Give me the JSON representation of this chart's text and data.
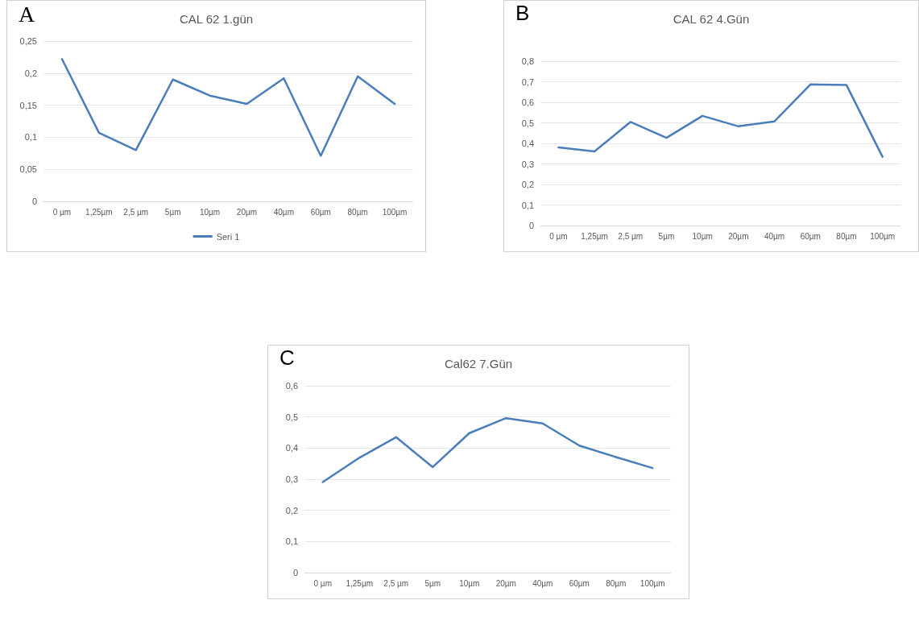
{
  "chart_data": [
    {
      "type": "line",
      "title": "CAL 62 1.gün",
      "annotations": [
        "A"
      ],
      "categories": [
        "0 µm",
        "1,25µm",
        "2,5 µm",
        "5µm",
        "10µm",
        "20µm",
        "40µm",
        "60µm",
        "80µm",
        "100µm"
      ],
      "series": [
        {
          "name": "Seri 1",
          "color": "#4a7ebb",
          "values": [
            0.222,
            0.107,
            0.08,
            0.19,
            0.165,
            0.152,
            0.192,
            0.071,
            0.195,
            0.152
          ]
        }
      ],
      "ylim": [
        0,
        0.25
      ],
      "yticks": [
        {
          "value": 0,
          "label": "0"
        },
        {
          "value": 0.05,
          "label": "0,05"
        },
        {
          "value": 0.1,
          "label": "0,1"
        },
        {
          "value": 0.15,
          "label": "0,15"
        },
        {
          "value": 0.2,
          "label": "0,2"
        },
        {
          "value": 0.25,
          "label": "0,25"
        }
      ],
      "grid": "y",
      "legend": "bottom",
      "marker": "none",
      "line_style": "solid"
    },
    {
      "type": "line",
      "title": "CAL 62 4.Gün",
      "annotations": [
        "B"
      ],
      "categories": [
        "0 µm",
        "1,25µm",
        "2,5 µm",
        "5µm",
        "10µm",
        "20µm",
        "40µm",
        "60µm",
        "80µm",
        "100µm"
      ],
      "series": [
        {
          "color": "#4a7ebb",
          "values": [
            0.38,
            0.361,
            0.504,
            0.427,
            0.534,
            0.483,
            0.507,
            0.687,
            0.684,
            0.335
          ]
        }
      ],
      "ylim": [
        0,
        0.8
      ],
      "yticks": [
        {
          "value": 0,
          "label": "0"
        },
        {
          "value": 0.1,
          "label": "0,1"
        },
        {
          "value": 0.2,
          "label": "0,2"
        },
        {
          "value": 0.3,
          "label": "0,3"
        },
        {
          "value": 0.4,
          "label": "0,4"
        },
        {
          "value": 0.5,
          "label": "0,5"
        },
        {
          "value": 0.6,
          "label": "0,6"
        },
        {
          "value": 0.7,
          "label": "0,7"
        },
        {
          "value": 0.8,
          "label": "0,8"
        }
      ],
      "grid": "y",
      "marker": "none",
      "line_style": "solid"
    },
    {
      "type": "line",
      "title": "Cal62 7.Gün",
      "annotations": [
        "C"
      ],
      "categories": [
        "0 µm",
        "1,25µm",
        "2,5 µm",
        "5µm",
        "10µm",
        "20µm",
        "40µm",
        "60µm",
        "80µm",
        "100µm"
      ],
      "series": [
        {
          "color": "#4a7ebb",
          "values": [
            0.291,
            0.369,
            0.435,
            0.339,
            0.448,
            0.496,
            0.479,
            0.408,
            0.371,
            0.336
          ]
        }
      ],
      "ylim": [
        0,
        0.6
      ],
      "yticks": [
        {
          "value": 0,
          "label": "0"
        },
        {
          "value": 0.1,
          "label": "0,1"
        },
        {
          "value": 0.2,
          "label": "0,2"
        },
        {
          "value": 0.3,
          "label": "0,3"
        },
        {
          "value": 0.4,
          "label": "0,4"
        },
        {
          "value": 0.5,
          "label": "0,5"
        },
        {
          "value": 0.6,
          "label": "0,6"
        }
      ],
      "grid": "y",
      "marker": "none",
      "line_style": "solid"
    }
  ]
}
